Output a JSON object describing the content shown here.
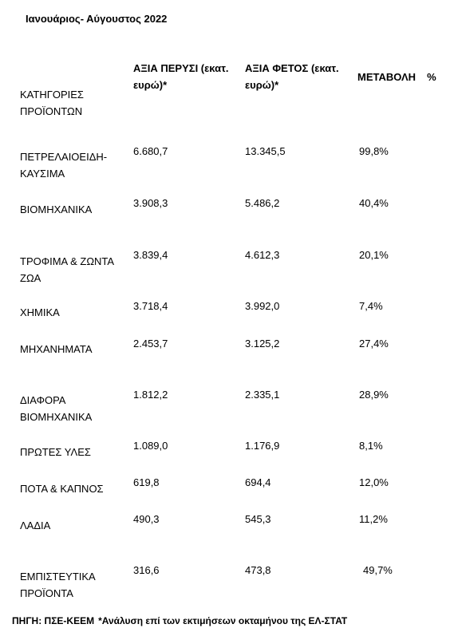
{
  "period": "Ιανουάριος- Αύγουστος  2022",
  "headers": {
    "category": "ΚΑΤΗΓΟΡΙΕΣ ΠΡΟΪΟΝΤΩΝ",
    "value_prev_year": "ΑΞΙΑ ΠΕΡΥΣΙ (εκατ. ευρώ)*",
    "value_this_year": "ΑΞΙΑ ΦΕΤΟΣ (εκατ. ευρώ)*",
    "change": "ΜΕΤΑΒΟΛΗ",
    "change_unit": "%"
  },
  "rows": [
    {
      "category": "ΠΕΤΡΕΛΑΙΟΕΙΔΗ-ΚΑΥΣΙΜΑ",
      "prev": "6.680,7",
      "curr": "13.345,5",
      "change": "99,8%"
    },
    {
      "category": "ΒΙΟΜΗΧΑΝΙΚΑ",
      "prev": "3.908,3",
      "curr": "5.486,2",
      "change": "40,4%"
    },
    {
      "category": "ΤΡΟΦΙΜΑ & ΖΩΝΤΑ ΖΩΑ",
      "prev": "3.839,4",
      "curr": "4.612,3",
      "change": "20,1%"
    },
    {
      "category": "ΧΗΜΙΚΑ",
      "prev": "3.718,4",
      "curr": "3.992,0",
      "change": "7,4%"
    },
    {
      "category": "ΜΗΧΑΝΗΜΑΤΑ",
      "prev": "2.453,7",
      "curr": "3.125,2",
      "change": "27,4%"
    },
    {
      "category": "ΔΙΑΦΟΡΑ ΒΙΟΜΗΧΑΝΙΚΑ",
      "prev": "1.812,2",
      "curr": "2.335,1",
      "change": "28,9%"
    },
    {
      "category": "ΠΡΩΤΕΣ ΥΛΕΣ",
      "prev": "1.089,0",
      "curr": "1.176,9",
      "change": "8,1%"
    },
    {
      "category": "ΠΟΤΑ & ΚΑΠΝΟΣ",
      "prev": "619,8",
      "curr": "694,4",
      "change": "12,0%"
    },
    {
      "category": "ΛΑΔΙΑ",
      "prev": "490,3",
      "curr": "545,3",
      "change": "11,2%"
    },
    {
      "category": "ΕΜΠΙΣΤΕΥΤΙΚΑ ΠΡΟΪΟΝΤΑ",
      "prev": "316,6",
      "curr": "473,8",
      "change": "49,7%"
    }
  ],
  "source": {
    "label": "ΠΗΓΗ: ΠΣΕ-ΚΕΕΜ",
    "note": "*Ανάλυση επί των εκτιμήσεων οκταμήνου της ΕΛ-ΣΤΑΤ"
  }
}
